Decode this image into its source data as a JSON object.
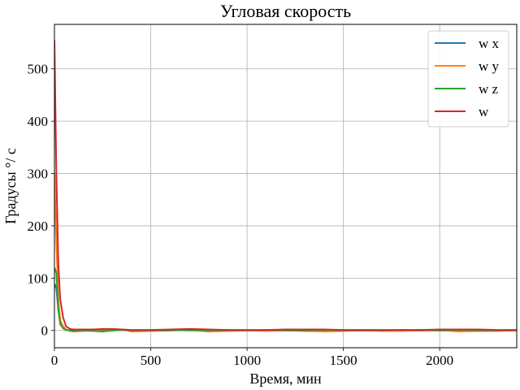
{
  "chart_data": {
    "type": "line",
    "title": "Угловая скорость",
    "xlabel": "Время, мин",
    "ylabel": "Градусы °/ с",
    "xlim": [
      0,
      2400
    ],
    "ylim": [
      -33,
      585
    ],
    "xticks": [
      0,
      500,
      1000,
      1500,
      2000
    ],
    "yticks": [
      0,
      100,
      200,
      300,
      400,
      500
    ],
    "grid": true,
    "legend_position": "top-right",
    "series": [
      {
        "name": "w x",
        "color": "#1f77b4",
        "x": [
          0,
          10,
          20,
          30,
          45,
          60,
          80,
          100,
          150,
          200,
          250,
          300,
          350,
          400,
          500,
          600,
          700,
          800,
          900,
          1000,
          1100,
          1200,
          1300,
          1400,
          1500,
          1600,
          1700,
          1800,
          1900,
          2000,
          2100,
          2200,
          2300,
          2400
        ],
        "y": [
          90,
          80,
          40,
          15,
          5,
          1,
          0,
          0,
          0,
          0,
          1,
          0,
          1,
          0,
          0,
          1,
          0,
          0,
          0,
          0,
          0,
          1,
          0,
          1,
          0,
          0,
          0,
          0,
          1,
          0,
          0,
          0,
          0,
          0
        ]
      },
      {
        "name": "w y",
        "color": "#ff7f0e",
        "x": [
          0,
          10,
          20,
          30,
          45,
          60,
          80,
          100,
          150,
          200,
          250,
          300,
          350,
          400,
          500,
          600,
          700,
          800,
          900,
          1000,
          1100,
          1200,
          1300,
          1400,
          1500,
          1600,
          1700,
          1800,
          1900,
          2000,
          2100,
          2200,
          2300,
          2400
        ],
        "y": [
          300,
          170,
          60,
          20,
          8,
          2,
          -1,
          -2,
          -1,
          0,
          2,
          1,
          2,
          -2,
          -1,
          0,
          1,
          -2,
          -1,
          0,
          -1,
          0,
          -1,
          -2,
          -1,
          0,
          -1,
          -1,
          0,
          1,
          -2,
          -1,
          -1,
          0
        ]
      },
      {
        "name": "w z",
        "color": "#2ca02c",
        "x": [
          0,
          10,
          20,
          30,
          45,
          60,
          80,
          100,
          150,
          200,
          250,
          300,
          350,
          400,
          500,
          600,
          700,
          800,
          900,
          1000,
          1100,
          1200,
          1300,
          1400,
          1500,
          1600,
          1700,
          1800,
          1900,
          2000,
          2100,
          2200,
          2300,
          2400
        ],
        "y": [
          120,
          110,
          40,
          12,
          4,
          1,
          0,
          -1,
          0,
          -1,
          -2,
          0,
          1,
          0,
          0,
          0,
          1,
          0,
          0,
          0,
          1,
          0,
          0,
          1,
          0,
          0,
          0,
          1,
          0,
          0,
          1,
          0,
          0,
          0
        ]
      },
      {
        "name": "w",
        "color": "#d62728",
        "x": [
          0,
          10,
          20,
          30,
          45,
          60,
          80,
          100,
          150,
          200,
          250,
          300,
          350,
          400,
          500,
          600,
          700,
          800,
          900,
          1000,
          1100,
          1200,
          1300,
          1400,
          1500,
          1600,
          1700,
          1800,
          1900,
          2000,
          2100,
          2200,
          2300,
          2400
        ],
        "y": [
          555,
          300,
          130,
          60,
          25,
          8,
          3,
          2,
          2,
          2,
          3,
          3,
          2,
          1,
          1,
          2,
          3,
          2,
          1,
          1,
          1,
          2,
          2,
          2,
          1,
          1,
          1,
          1,
          1,
          2,
          2,
          2,
          1,
          1
        ]
      }
    ]
  }
}
